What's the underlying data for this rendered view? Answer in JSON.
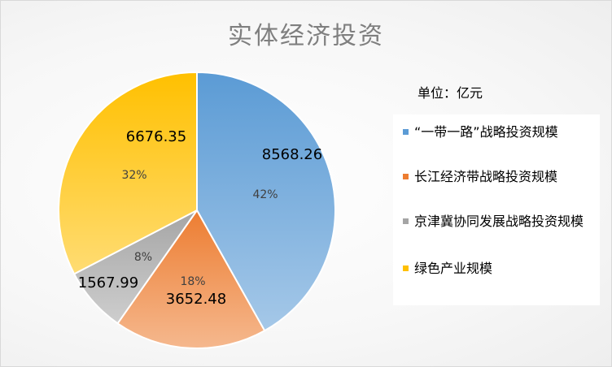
{
  "chart_data": {
    "type": "pie",
    "title": "实体经济投资",
    "unit_note": "单位：亿元",
    "series": [
      {
        "name": "“一带一路”战略投资规模",
        "value": 8568.26,
        "value_label": "8568.26",
        "percent_label": "42%",
        "color": "#5b9bd5"
      },
      {
        "name": "长江经济带战略投资规模",
        "value": 3652.48,
        "value_label": "3652.48",
        "percent_label": "18%",
        "color": "#ed7d31"
      },
      {
        "name": "京津冀协同发展战略投资规模",
        "value": 1567.99,
        "value_label": "1567.99",
        "percent_label": "8%",
        "color": "#a5a5a5"
      },
      {
        "name": "绿色产业规模",
        "value": 6676.35,
        "value_label": "6676.35",
        "percent_label": "32%",
        "color": "#ffc000"
      }
    ],
    "legend_position": "right"
  }
}
